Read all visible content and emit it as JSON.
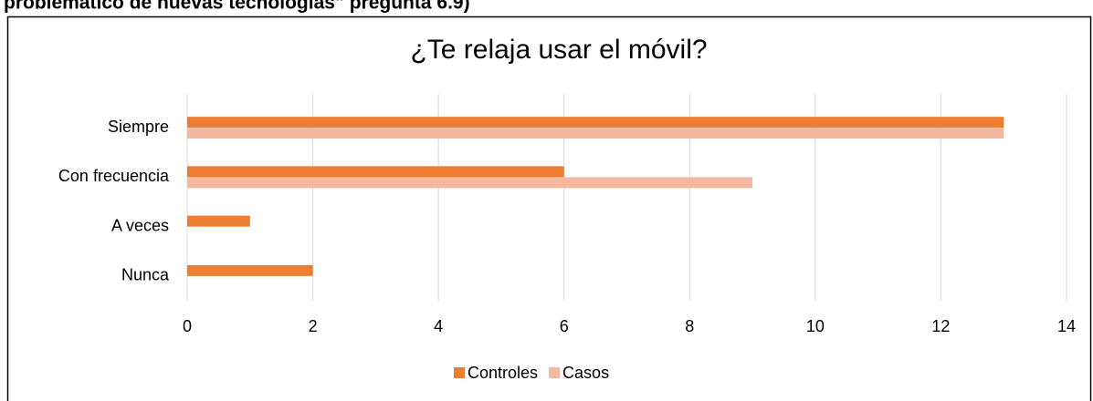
{
  "heading": "problemático de nuevas tecnologías\" pregunta 6.9)",
  "chart_data": {
    "type": "bar",
    "orientation": "horizontal",
    "title": "¿Te relaja usar el móvil?",
    "categories": [
      "Siempre",
      "Con frecuencia",
      "A veces",
      "Nunca"
    ],
    "series": [
      {
        "name": "Controles",
        "color": "#ed7d31",
        "values": [
          13,
          6,
          1,
          2
        ]
      },
      {
        "name": "Casos",
        "color": "#f4b9a0",
        "values": [
          13,
          9,
          0,
          0
        ]
      }
    ],
    "xlim": [
      0,
      14
    ],
    "xticks": [
      0,
      2,
      4,
      6,
      8,
      10,
      12,
      14
    ],
    "grid": true,
    "legend": "bottom"
  }
}
